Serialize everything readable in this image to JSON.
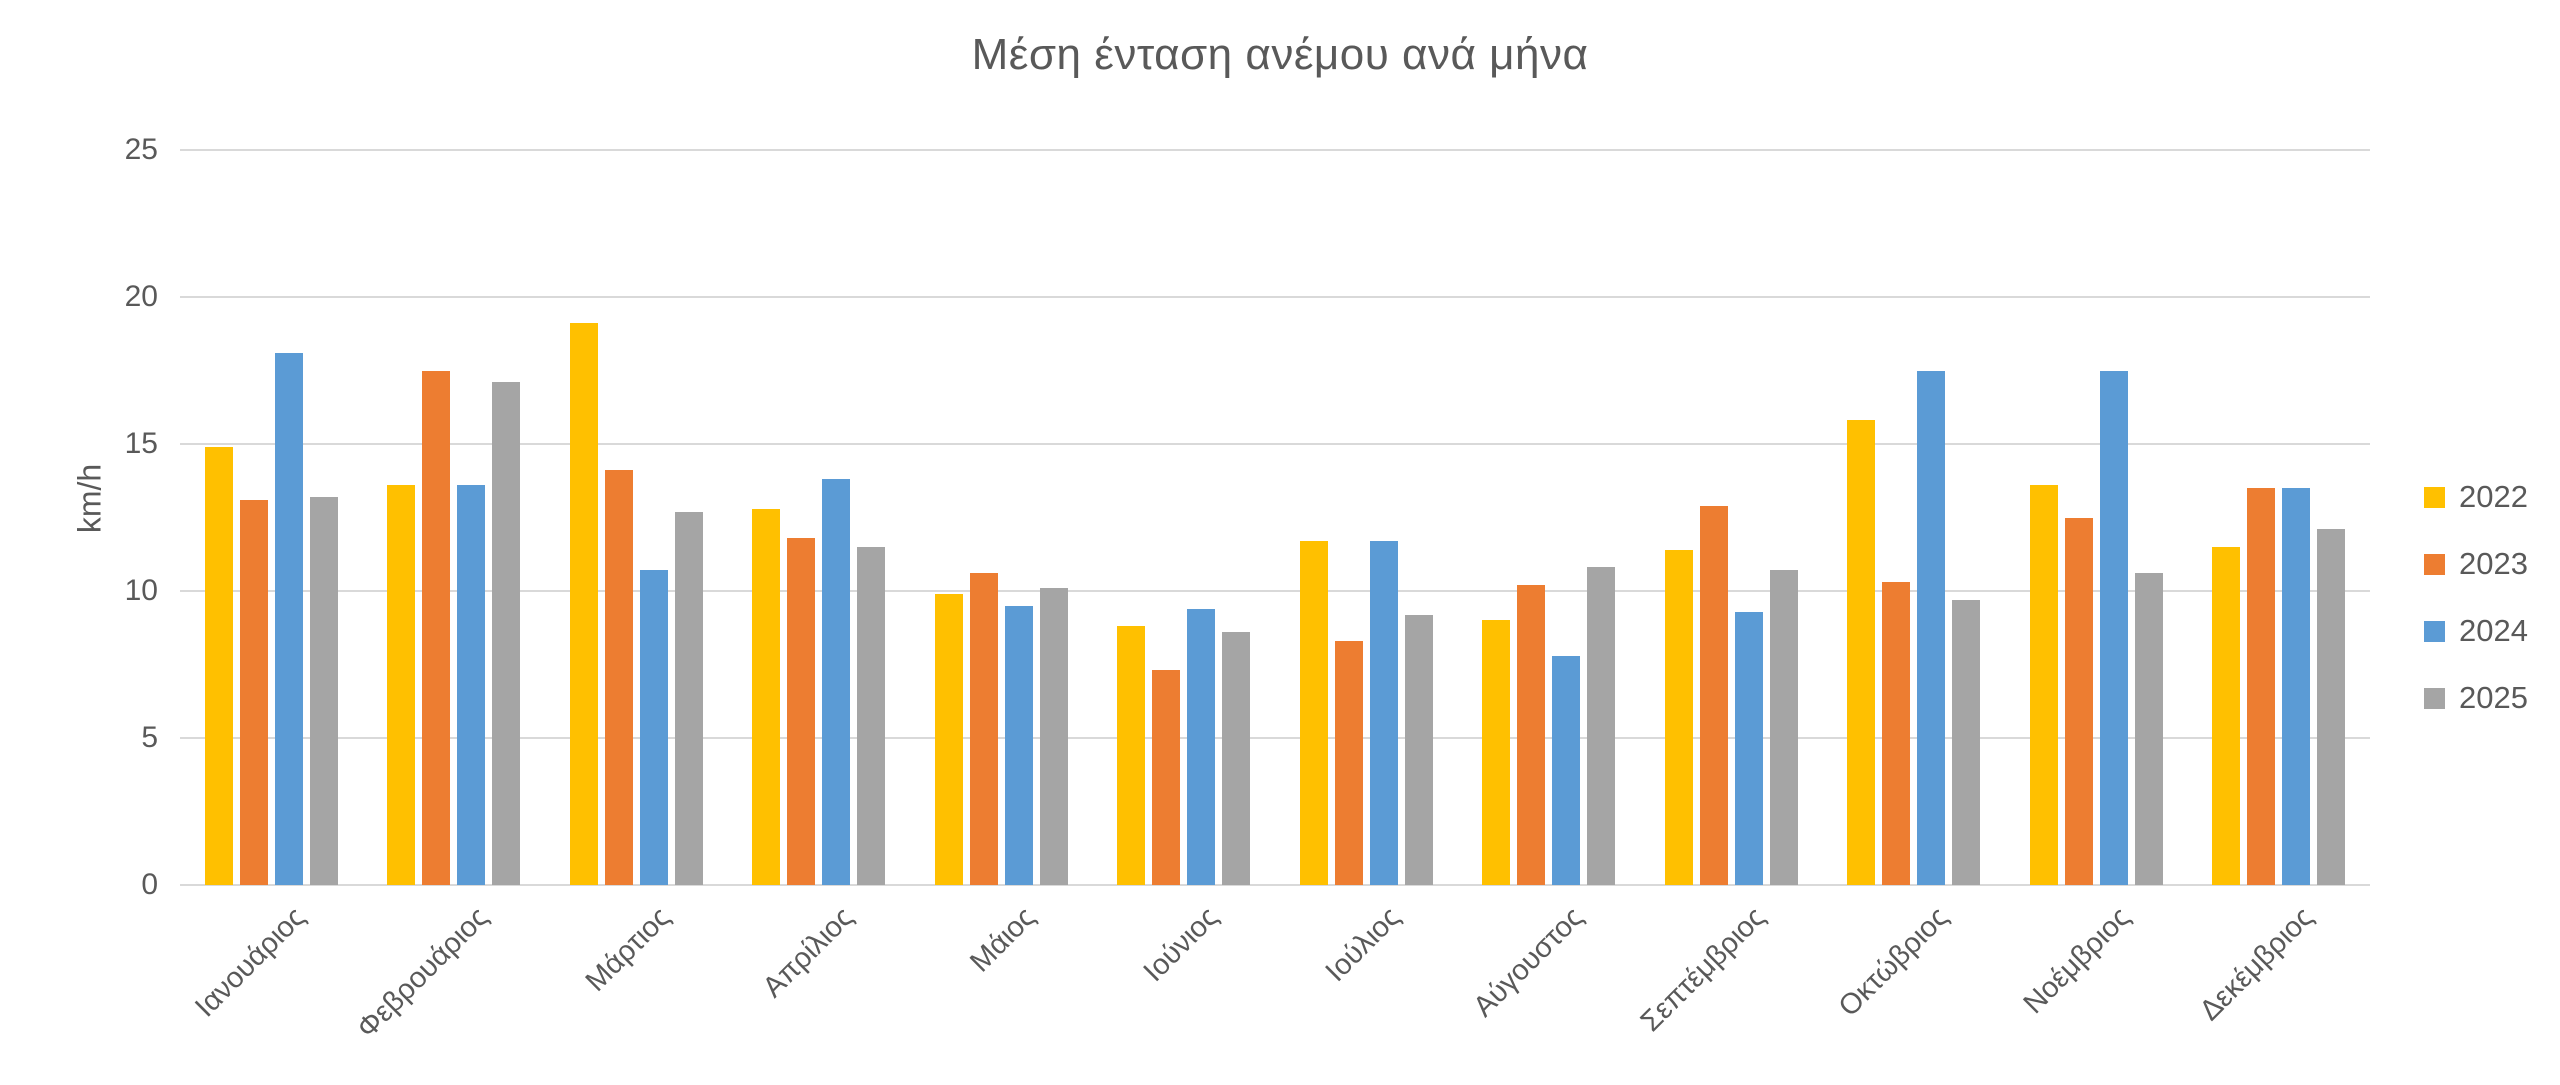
{
  "chart_data": {
    "type": "bar",
    "title": "Μέση ένταση ανέμου ανά μήνα",
    "ylabel": "km/h",
    "ylim": [
      0,
      25
    ],
    "yticks": [
      0,
      5,
      10,
      15,
      20,
      25
    ],
    "grid": true,
    "legend_position": "right",
    "categories": [
      "Ιανουάριος",
      "Φεβρουάριος",
      "Μάρτιος",
      "Απρίλιος",
      "Μάιος",
      "Ιούνιος",
      "Ιούλιος",
      "Αύγουστος",
      "Σεπτέμβριος",
      "Οκτώβριος",
      "Νοέμβριος",
      "Δεκέμβριος"
    ],
    "series": [
      {
        "name": "2022",
        "color": "#FFC000",
        "values": [
          14.9,
          13.6,
          19.1,
          12.8,
          9.9,
          8.8,
          11.7,
          9.0,
          11.4,
          15.8,
          13.6,
          11.5
        ]
      },
      {
        "name": "2023",
        "color": "#ED7D31",
        "values": [
          13.1,
          17.5,
          14.1,
          11.8,
          10.6,
          7.3,
          8.3,
          10.2,
          12.9,
          10.3,
          12.5,
          13.5
        ]
      },
      {
        "name": "2024",
        "color": "#5B9BD5",
        "values": [
          18.1,
          13.6,
          10.7,
          13.8,
          9.5,
          9.4,
          11.7,
          7.8,
          9.3,
          17.5,
          17.5,
          13.5
        ]
      },
      {
        "name": "2025",
        "color": "#A5A5A5",
        "values": [
          13.2,
          17.1,
          12.7,
          11.5,
          10.1,
          8.6,
          9.2,
          10.8,
          10.7,
          9.7,
          10.6,
          12.1
        ]
      }
    ]
  },
  "styles": {
    "text_color": "#595959",
    "grid_color": "#D9D9D9",
    "background": "#FFFFFF"
  }
}
